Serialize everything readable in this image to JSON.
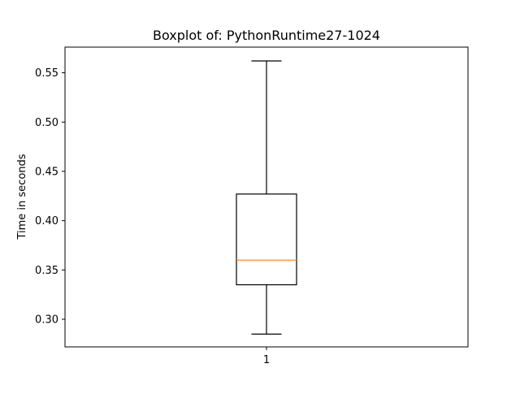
{
  "chart_data": {
    "type": "boxplot",
    "title": "Boxplot of: PythonRuntime27-1024",
    "xlabel": "",
    "ylabel": "Time in seconds",
    "categories": [
      "1"
    ],
    "boxes": [
      {
        "category": "1",
        "whisker_low": 0.285,
        "q1": 0.335,
        "median": 0.36,
        "q3": 0.427,
        "whisker_high": 0.562
      }
    ],
    "ylim": [
      0.272,
      0.576
    ],
    "yticks": [
      0.3,
      0.35,
      0.4,
      0.45,
      0.5,
      0.55
    ],
    "ytick_labels": [
      "0.30",
      "0.35",
      "0.40",
      "0.45",
      "0.50",
      "0.55"
    ],
    "grid": false,
    "colors": {
      "box": "#000000",
      "median": "#ff7f0e",
      "frame": "#000000",
      "background": "#ffffff"
    }
  }
}
